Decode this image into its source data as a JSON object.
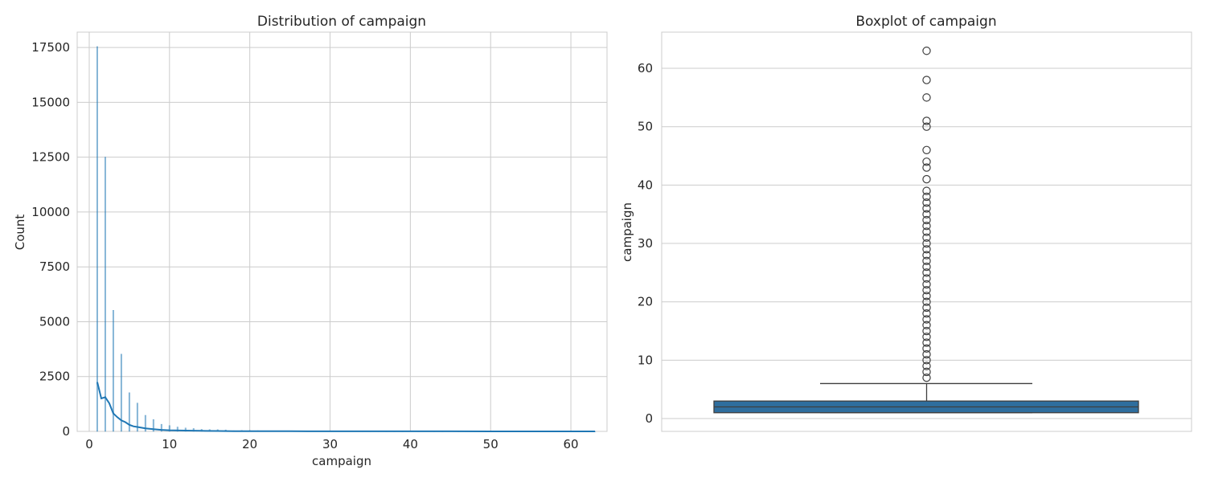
{
  "chart_data": [
    {
      "type": "histogram",
      "title": "Distribution of campaign",
      "xlabel": "campaign",
      "ylabel": "Count",
      "xlim": [
        -1.5,
        64.5
      ],
      "ylim": [
        0,
        18200
      ],
      "xticks": [
        0,
        10,
        20,
        30,
        40,
        50,
        60
      ],
      "yticks": [
        0,
        2500,
        5000,
        7500,
        10000,
        12500,
        15000,
        17500
      ],
      "grid": true,
      "bar_color": "#1f77b4",
      "bins": {
        "x": [
          1,
          2,
          3,
          4,
          5,
          6,
          7,
          8,
          9,
          10,
          11,
          12,
          13,
          14,
          15,
          16,
          17,
          18,
          19,
          20,
          21,
          22,
          23,
          24,
          25,
          26,
          27,
          28,
          29,
          30,
          31,
          32,
          33,
          34,
          35,
          36,
          37,
          38,
          39,
          41,
          43,
          44,
          46,
          50,
          51,
          55,
          58,
          63
        ],
        "counts": [
          17544,
          12505,
          5521,
          3522,
          1764,
          1291,
          735,
          540,
          327,
          266,
          201,
          155,
          133,
          93,
          84,
          79,
          69,
          33,
          44,
          43,
          35,
          23,
          22,
          20,
          22,
          13,
          10,
          16,
          16,
          8,
          12,
          9,
          6,
          5,
          4,
          4,
          2,
          3,
          1,
          2,
          3,
          1,
          1,
          1,
          1,
          1,
          1,
          1
        ]
      },
      "kde": {
        "x": [
          1,
          1.5,
          2,
          2.5,
          3,
          3.5,
          4,
          4.5,
          5,
          5.5,
          6,
          7,
          8,
          9,
          10,
          12,
          14,
          16,
          18,
          20,
          25,
          30,
          35,
          40,
          45,
          50,
          55,
          60,
          63
        ],
        "y": [
          2250,
          1500,
          1560,
          1280,
          820,
          650,
          500,
          420,
          300,
          230,
          200,
          140,
          100,
          70,
          50,
          35,
          25,
          18,
          12,
          10,
          6,
          4,
          3,
          2,
          2,
          1,
          1,
          1,
          1
        ]
      }
    },
    {
      "type": "boxplot",
      "title": "Boxplot of campaign",
      "ylabel": "campaign",
      "ylim": [
        -2.2,
        66.2
      ],
      "yticks": [
        0,
        10,
        20,
        30,
        40,
        50,
        60
      ],
      "grid": true,
      "box_color": "#2f6e9e",
      "stats": {
        "whislo": 1,
        "q1": 1,
        "median": 2,
        "q3": 3,
        "whishi": 6
      },
      "outliers": [
        7,
        8,
        9,
        10,
        11,
        12,
        13,
        14,
        15,
        16,
        17,
        18,
        19,
        20,
        21,
        22,
        23,
        24,
        25,
        26,
        27,
        28,
        29,
        30,
        31,
        32,
        33,
        34,
        35,
        36,
        37,
        38,
        39,
        41,
        43,
        44,
        46,
        50,
        51,
        55,
        58,
        63
      ]
    }
  ]
}
